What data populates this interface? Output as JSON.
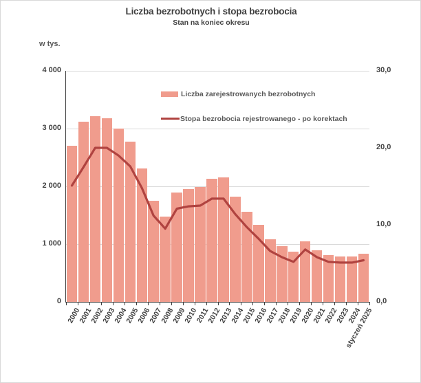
{
  "header": {
    "title": "Liczba bezrobotnych i stopa bezrobocia",
    "subtitle": "Stan na koniec okresu",
    "unit_label": "w tys."
  },
  "colors": {
    "bar_fill": "#F09C8D",
    "line_stroke": "#B04340",
    "grid": "#D9D9D9",
    "axis": "#3F3F3F",
    "tick_text": "#404040",
    "legend_text": "#595959",
    "background": "#FFFFFF",
    "frame_border": "#D8D8D8"
  },
  "legend": {
    "items": [
      {
        "swatch": "bar-swatch",
        "label": "Liczba zarejestrowanych bezrobotnych"
      },
      {
        "swatch": "line-swatch",
        "label": "Stopa bezrobocia rejestrowanego - po korektach"
      }
    ]
  },
  "chart_data": {
    "type": "bar",
    "title": "Liczba bezrobotnych i stopa bezrobocia",
    "subtitle": "Stan na koniec okresu",
    "categories": [
      "2000",
      "2001",
      "2002",
      "2003",
      "2004",
      "2005",
      "2006",
      "2007",
      "2008",
      "2009",
      "2010",
      "2011",
      "2012",
      "2013",
      "2014",
      "2015",
      "2016",
      "2017",
      "2018",
      "2019",
      "2020",
      "2021",
      "2022",
      "2023",
      "2024",
      "styczeń 2025"
    ],
    "series": [
      {
        "name": "Liczba zarejestrowanych bezrobotnych",
        "type": "bar",
        "axis": "left",
        "unit": "tys.",
        "values": [
          2702.6,
          3115.1,
          3217.0,
          3175.7,
          2999.6,
          2773.0,
          2309.4,
          1746.6,
          1473.8,
          1892.7,
          1954.7,
          1982.7,
          2136.8,
          2157.9,
          1825.2,
          1563.3,
          1335.2,
          1081.7,
          968.9,
          866.4,
          1046.4,
          895.2,
          812.3,
          788.2,
          786.9,
          837.1
        ]
      },
      {
        "name": "Stopa bezrobocia rejestrowanego - po korektach",
        "type": "line",
        "axis": "right",
        "unit": "%",
        "values": [
          15.1,
          17.5,
          20.0,
          20.0,
          19.0,
          17.6,
          14.8,
          11.2,
          9.5,
          12.1,
          12.4,
          12.5,
          13.4,
          13.4,
          11.4,
          9.7,
          8.2,
          6.6,
          5.8,
          5.2,
          6.8,
          5.8,
          5.2,
          5.1,
          5.1,
          5.4
        ]
      }
    ],
    "left_axis": {
      "label": "w tys.",
      "min": 0,
      "max": 4000,
      "step": 1000,
      "ticks": [
        0,
        1000,
        2000,
        3000,
        4000
      ],
      "tick_labels": [
        "0",
        "1 000",
        "2 000",
        "3 000",
        "4 000"
      ]
    },
    "right_axis": {
      "min": 0,
      "max": 30,
      "step": 10,
      "ticks": [
        0,
        10,
        20,
        30
      ],
      "tick_labels": [
        "0,0",
        "10,0",
        "20,0",
        "30,0"
      ]
    },
    "grid": true,
    "legend_position": "inside-top"
  }
}
